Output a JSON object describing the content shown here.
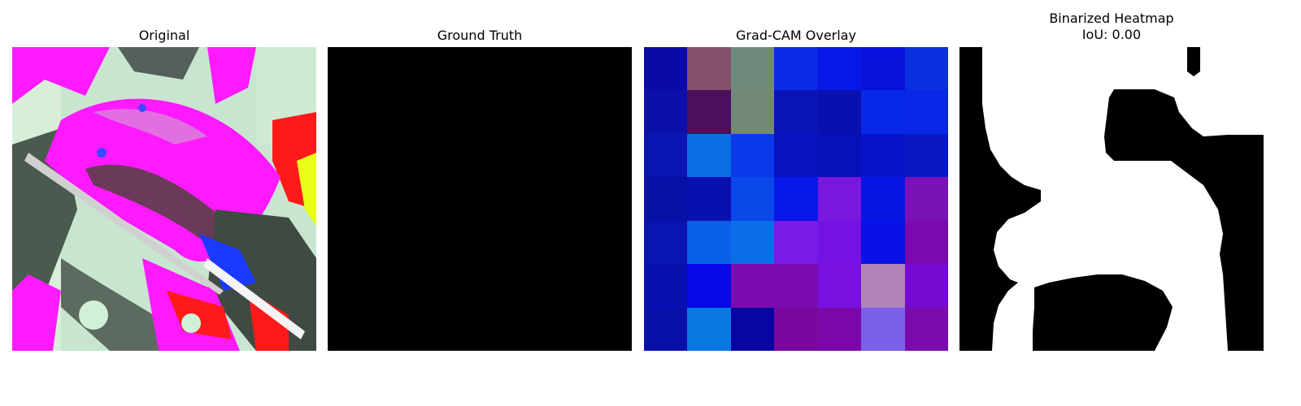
{
  "panels": [
    {
      "id": "original",
      "title": "Original"
    },
    {
      "id": "ground_truth",
      "title": "Ground Truth",
      "fill_color": "#000000"
    },
    {
      "id": "gradcam",
      "title": "Grad-CAM Overlay",
      "grid": [
        [
          "#0a0aa8",
          "#825068",
          "#6f8a7a",
          "#0a2ae6",
          "#0818e6",
          "#0812dc",
          "#0a30e0"
        ],
        [
          "#0c10aa",
          "#4a105e",
          "#74887a",
          "#0814b6",
          "#0810b0",
          "#0828e8",
          "#0a26e6"
        ],
        [
          "#0a14b0",
          "#0a6ee6",
          "#0a3aea",
          "#0a12c0",
          "#0810b8",
          "#0814c8",
          "#0a18c4"
        ],
        [
          "#0810a8",
          "#0810b0",
          "#0a48ea",
          "#0818e8",
          "#7a18e0",
          "#0814e2",
          "#7a12b8"
        ],
        [
          "#0a14b0",
          "#0a60e6",
          "#0a6ee8",
          "#7a1ae6",
          "#7412e2",
          "#0812e6",
          "#780aae"
        ],
        [
          "#0810b0",
          "#0808e6",
          "#7a0cb0",
          "#7a0cb2",
          "#7810e0",
          "#b084b8",
          "#760ad0"
        ],
        [
          "#0810aa",
          "#0a78e2",
          "#0806a2",
          "#78089e",
          "#7a08a8",
          "#7c60e8",
          "#7a0cae"
        ]
      ]
    },
    {
      "id": "binarized",
      "title_line1": "Binarized Heatmap",
      "title_line2": "IoU: 0.00"
    }
  ]
}
